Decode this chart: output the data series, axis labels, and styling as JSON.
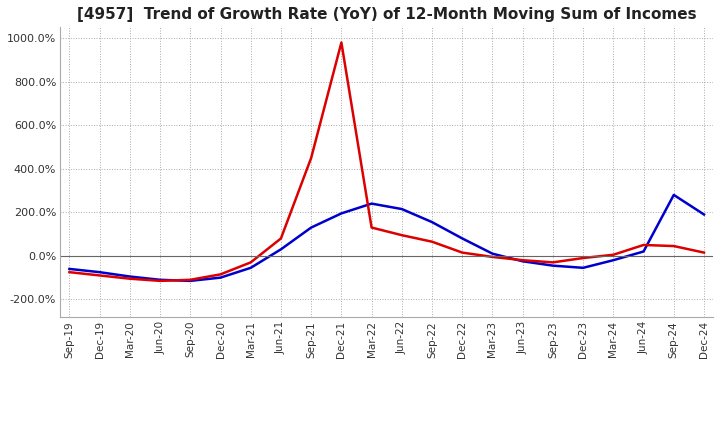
{
  "title": "[4957]  Trend of Growth Rate (YoY) of 12-Month Moving Sum of Incomes",
  "title_fontsize": 11,
  "ylim": [
    -280,
    1050
  ],
  "yticks": [
    -200,
    0,
    200,
    400,
    600,
    800,
    1000
  ],
  "ytick_labels": [
    "-200.0%",
    "0.0%",
    "200.0%",
    "400.0%",
    "600.0%",
    "800.0%",
    "1000.0%"
  ],
  "background_color": "#ffffff",
  "plot_bg_color": "#ffffff",
  "grid_color": "#aaaaaa",
  "ordinary_color": "#0000cc",
  "net_color": "#dd0000",
  "x_labels": [
    "Sep-19",
    "Dec-19",
    "Mar-20",
    "Jun-20",
    "Sep-20",
    "Dec-20",
    "Mar-21",
    "Jun-21",
    "Sep-21",
    "Dec-21",
    "Mar-22",
    "Jun-22",
    "Sep-22",
    "Dec-22",
    "Mar-23",
    "Jun-23",
    "Sep-23",
    "Dec-23",
    "Mar-24",
    "Jun-24",
    "Sep-24",
    "Dec-24"
  ],
  "ordinary_income_growth": [
    -60,
    -75,
    -95,
    -110,
    -115,
    -100,
    -55,
    30,
    130,
    195,
    240,
    215,
    155,
    80,
    10,
    -25,
    -45,
    -55,
    -20,
    20,
    280,
    190
  ],
  "net_income_growth": [
    -75,
    -90,
    -105,
    -115,
    -110,
    -85,
    -30,
    80,
    450,
    980,
    130,
    95,
    65,
    15,
    -5,
    -20,
    -30,
    -10,
    5,
    50,
    45,
    15
  ]
}
